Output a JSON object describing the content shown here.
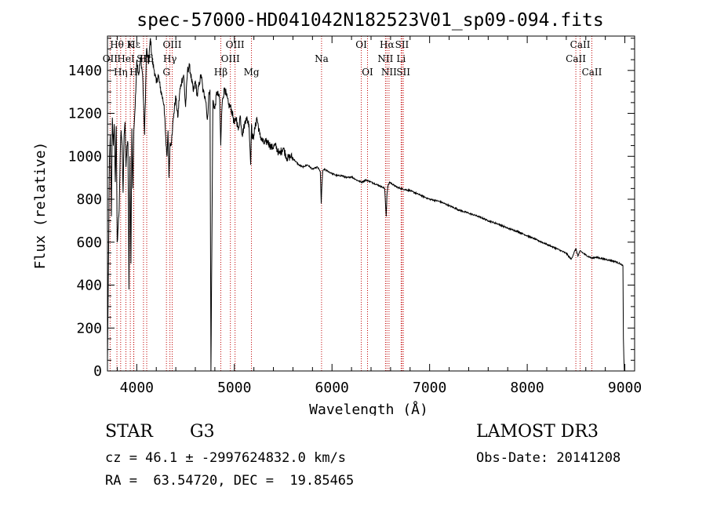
{
  "info": {
    "object_type": "STAR",
    "subclass": "G3",
    "survey": "LAMOST DR3",
    "cz_line": "cz = 46.1 ± -2997624832.0 km/s",
    "obs_date": "Obs-Date: 20141208",
    "radec": "RA =  63.54720, DEC =  19.85465"
  },
  "chart_data": {
    "type": "line",
    "title": "spec-57000-HD041042N182523V01_sp09-094.fits",
    "xlabel": "Wavelength (Å)",
    "ylabel": "Flux (relative)",
    "xlim": [
      3700,
      9100
    ],
    "ylim": [
      0,
      1560
    ],
    "xticks": [
      4000,
      5000,
      6000,
      7000,
      8000,
      9000
    ],
    "yticks": [
      0,
      200,
      400,
      600,
      800,
      1000,
      1200,
      1400
    ],
    "line_color": "#000000",
    "marker_color": "#c00000",
    "series": [
      {
        "name": "flux",
        "x": [
          3700,
          3710,
          3720,
          3730,
          3740,
          3750,
          3760,
          3770,
          3780,
          3790,
          3800,
          3810,
          3820,
          3830,
          3840,
          3850,
          3860,
          3870,
          3880,
          3890,
          3900,
          3910,
          3920,
          3930,
          3940,
          3950,
          3960,
          3970,
          3980,
          3990,
          4000,
          4020,
          4040,
          4060,
          4080,
          4100,
          4120,
          4140,
          4160,
          4180,
          4200,
          4220,
          4240,
          4260,
          4280,
          4300,
          4310,
          4320,
          4330,
          4340,
          4350,
          4360,
          4380,
          4400,
          4420,
          4440,
          4460,
          4480,
          4500,
          4520,
          4540,
          4560,
          4580,
          4600,
          4620,
          4640,
          4660,
          4680,
          4700,
          4710,
          4720,
          4730,
          4740,
          4750,
          4760,
          4780,
          4800,
          4820,
          4840,
          4850,
          4860,
          4870,
          4880,
          4900,
          4920,
          4940,
          4960,
          4980,
          5000,
          5020,
          5040,
          5060,
          5080,
          5100,
          5120,
          5150,
          5167,
          5175,
          5183,
          5200,
          5230,
          5260,
          5300,
          5340,
          5380,
          5420,
          5460,
          5500,
          5540,
          5580,
          5620,
          5660,
          5700,
          5750,
          5800,
          5850,
          5880,
          5890,
          5896,
          5905,
          5920,
          5960,
          6000,
          6050,
          6100,
          6150,
          6200,
          6250,
          6300,
          6350,
          6400,
          6450,
          6500,
          6540,
          6555,
          6563,
          6572,
          6590,
          6650,
          6700,
          6800,
          6900,
          7000,
          7100,
          7200,
          7300,
          7400,
          7500,
          7600,
          7700,
          7800,
          7900,
          8000,
          8100,
          8200,
          8300,
          8400,
          8450,
          8498,
          8520,
          8542,
          8570,
          8600,
          8662,
          8700,
          8800,
          8900,
          8950,
          8980,
          8985,
          8990,
          8995
        ],
        "y": [
          50,
          480,
          980,
          1100,
          720,
          1180,
          1050,
          1150,
          880,
          1140,
          600,
          680,
          750,
          1000,
          1120,
          1050,
          830,
          1100,
          1160,
          950,
          1050,
          1060,
          380,
          1000,
          500,
          1130,
          850,
          1120,
          1200,
          1300,
          1450,
          1380,
          1460,
          1380,
          1100,
          1500,
          1430,
          1550,
          1440,
          1400,
          1340,
          1380,
          1320,
          1280,
          1240,
          1050,
          1000,
          1120,
          900,
          1060,
          1050,
          1100,
          1200,
          1280,
          1180,
          1300,
          1350,
          1380,
          1230,
          1400,
          1420,
          1360,
          1300,
          1350,
          1280,
          1340,
          1380,
          1300,
          1280,
          1250,
          1180,
          1200,
          1300,
          1310,
          0,
          1260,
          1220,
          1300,
          1280,
          1260,
          1050,
          1200,
          1270,
          1320,
          1280,
          1240,
          1230,
          1200,
          1150,
          1180,
          1120,
          1190,
          1100,
          1140,
          1180,
          1150,
          960,
          1150,
          1080,
          1100,
          1180,
          1100,
          1060,
          1070,
          1040,
          1050,
          1010,
          1040,
          990,
          1000,
          980,
          960,
          950,
          960,
          940,
          950,
          930,
          780,
          860,
          930,
          940,
          930,
          920,
          910,
          910,
          900,
          905,
          890,
          880,
          890,
          880,
          870,
          860,
          850,
          720,
          820,
          860,
          880,
          860,
          850,
          840,
          820,
          800,
          790,
          770,
          750,
          735,
          720,
          700,
          685,
          665,
          650,
          630,
          610,
          590,
          570,
          548,
          520,
          570,
          535,
          560,
          550,
          540,
          525,
          530,
          520,
          510,
          500,
          490,
          150,
          60,
          0
        ]
      }
    ],
    "lines": [
      {
        "label": "Hθ",
        "wl": 3797,
        "row": 0
      },
      {
        "label": "OII",
        "wl": 3727,
        "row": 1
      },
      {
        "label": "Hη",
        "wl": 3835,
        "row": 2
      },
      {
        "label": "K",
        "wl": 3934,
        "row": 0
      },
      {
        "label": "HeI",
        "wl": 3889,
        "row": 1
      },
      {
        "label": "H",
        "wl": 3968,
        "row": 2
      },
      {
        "label": "Hε",
        "wl": 3970,
        "row": 0
      },
      {
        "label": "SII",
        "wl": 4069,
        "row": 1
      },
      {
        "label": "Hδ",
        "wl": 4102,
        "row": 1
      },
      {
        "label": "OIII",
        "wl": 4363,
        "row": 0
      },
      {
        "label": "Hγ",
        "wl": 4340,
        "row": 1
      },
      {
        "label": "G",
        "wl": 4304,
        "row": 2
      },
      {
        "label": "OIII",
        "wl": 5007,
        "row": 0
      },
      {
        "label": "OIII",
        "wl": 4959,
        "row": 1
      },
      {
        "label": "Hβ",
        "wl": 4861,
        "row": 2
      },
      {
        "label": "Mg",
        "wl": 5175,
        "row": 2
      },
      {
        "label": "Na",
        "wl": 5893,
        "row": 1
      },
      {
        "label": "OI",
        "wl": 6300,
        "row": 0
      },
      {
        "label": "OI",
        "wl": 6364,
        "row": 2
      },
      {
        "label": "Hα",
        "wl": 6563,
        "row": 0
      },
      {
        "label": "NII",
        "wl": 6548,
        "row": 1
      },
      {
        "label": "NII",
        "wl": 6584,
        "row": 2
      },
      {
        "label": "SII",
        "wl": 6717,
        "row": 0
      },
      {
        "label": "Li",
        "wl": 6708,
        "row": 1
      },
      {
        "label": "SII",
        "wl": 6731,
        "row": 2
      },
      {
        "label": "CaII",
        "wl": 8542,
        "row": 0
      },
      {
        "label": "CaII",
        "wl": 8498,
        "row": 1
      },
      {
        "label": "CaII",
        "wl": 8662,
        "row": 2
      }
    ]
  }
}
